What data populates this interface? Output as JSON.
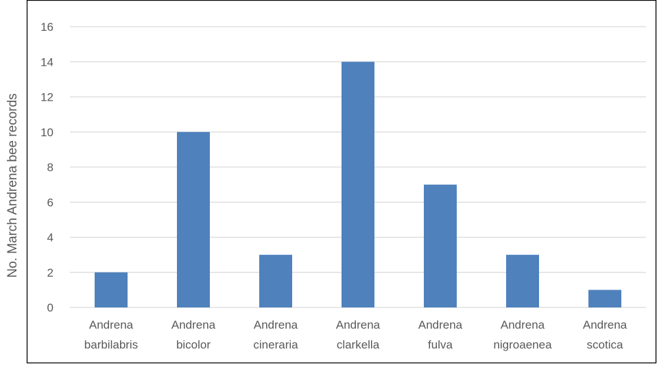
{
  "chart_data": {
    "type": "bar",
    "title": "",
    "xlabel": "",
    "ylabel": "No. March Andrena bee records",
    "ylim": [
      0,
      16
    ],
    "yticks": [
      0,
      2,
      4,
      6,
      8,
      10,
      12,
      14,
      16
    ],
    "grid": true,
    "legend": "none",
    "categories": [
      [
        "Andrena",
        "barbilabris"
      ],
      [
        "Andrena",
        "bicolor"
      ],
      [
        "Andrena",
        "cineraria"
      ],
      [
        "Andrena",
        "clarkella"
      ],
      [
        "Andrena",
        "fulva"
      ],
      [
        "Andrena",
        "nigroaenea"
      ],
      [
        "Andrena",
        "scotica"
      ]
    ],
    "values": [
      2,
      10,
      3,
      14,
      7,
      3,
      1
    ],
    "colors": {
      "bar": "#4f81bd",
      "grid": "#d9d9d9",
      "axis": "#d9d9d9",
      "text": "#595959",
      "frame": "#000000"
    }
  }
}
